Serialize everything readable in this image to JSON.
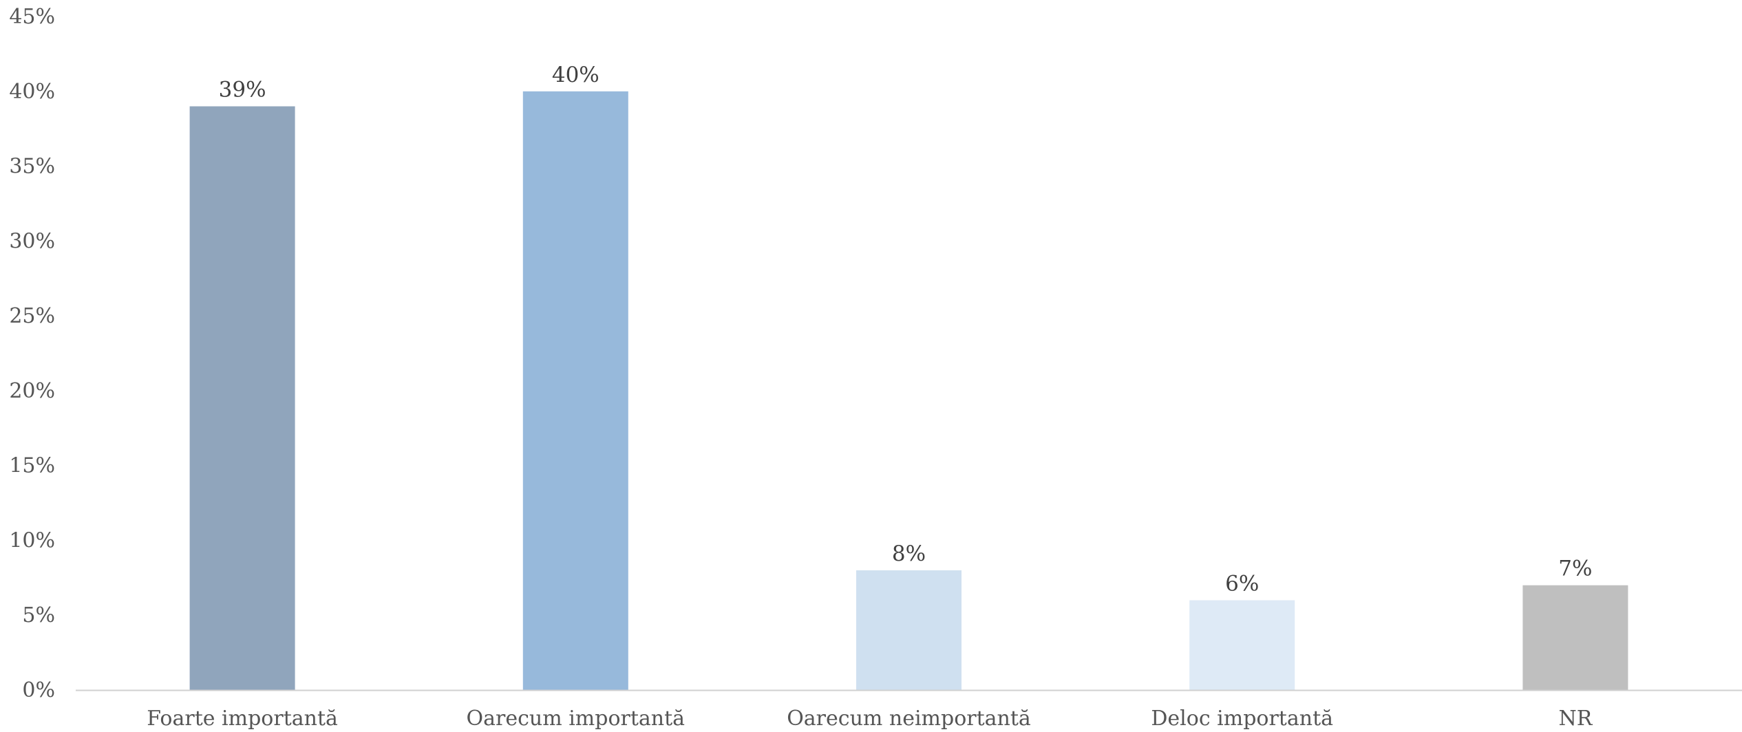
{
  "chart_data": {
    "type": "bar",
    "categories": [
      "Foarte importantă",
      "Oarecum importantă",
      "Oarecum neimportantă",
      "Deloc importantă",
      "NR"
    ],
    "values": [
      39,
      40,
      8,
      6,
      7
    ],
    "data_labels": [
      "39%",
      "40%",
      "8%",
      "6%",
      "7%"
    ],
    "colors": [
      "#90a5bc",
      "#97b9db",
      "#cfe0f0",
      "#deeaf6",
      "#bfbfbf"
    ],
    "ylim": [
      0,
      45
    ],
    "yticks": [
      0,
      5,
      10,
      15,
      20,
      25,
      30,
      35,
      40,
      45
    ],
    "ytick_labels": [
      "0%",
      "5%",
      "10%",
      "15%",
      "20%",
      "25%",
      "30%",
      "35%",
      "40%",
      "45%"
    ],
    "grid": false,
    "axis_color": "#d0d0d0"
  }
}
